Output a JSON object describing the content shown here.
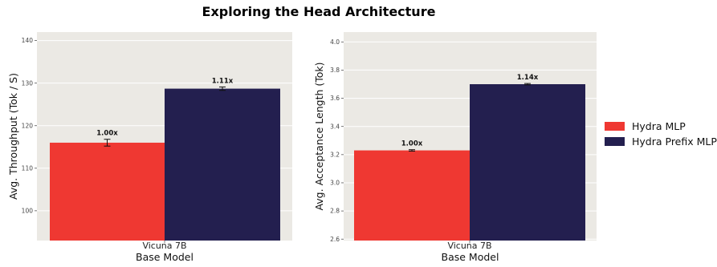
{
  "title": "Exploring the Head Architecture",
  "chart_data": [
    {
      "type": "bar",
      "categories": [
        "Vicuna 7B"
      ],
      "xlabel": "Base Model",
      "ylabel": "Avg. Throughput (Tok / S)",
      "ylim": [
        93,
        142
      ],
      "yticks": [
        100,
        110,
        120,
        130,
        140
      ],
      "grid": true,
      "series": [
        {
          "name": "Hydra MLP",
          "values": [
            116.0
          ],
          "error": [
            0.8
          ],
          "labels": [
            "1.00x"
          ]
        },
        {
          "name": "Hydra Prefix MLP",
          "values": [
            128.7
          ],
          "error": [
            0.4
          ],
          "labels": [
            "1.11x"
          ]
        }
      ]
    },
    {
      "type": "bar",
      "categories": [
        "Vicuna 7B"
      ],
      "xlabel": "Base Model",
      "ylabel": "Avg. Acceptance Length (Tok)",
      "ylim": [
        2.59,
        4.07
      ],
      "yticks": [
        "2.6",
        "2.8",
        "3.0",
        "3.2",
        "3.4",
        "3.6",
        "3.8",
        "4.0"
      ],
      "grid": true,
      "series": [
        {
          "name": "Hydra MLP",
          "values": [
            3.23
          ],
          "error": [
            0.005
          ],
          "labels": [
            "1.00x"
          ]
        },
        {
          "name": "Hydra Prefix MLP",
          "values": [
            3.7
          ],
          "error": [
            0.005
          ],
          "labels": [
            "1.14x"
          ]
        }
      ]
    }
  ],
  "legend": {
    "position": "right",
    "items": [
      {
        "label": "Hydra MLP",
        "color": "#ef3832"
      },
      {
        "label": "Hydra Prefix MLP",
        "color": "#231f4f"
      }
    ]
  },
  "colors": {
    "panel_bg": "#ebe9e4",
    "grid": "#ffffff",
    "series": [
      "#ef3832",
      "#231f4f"
    ]
  }
}
